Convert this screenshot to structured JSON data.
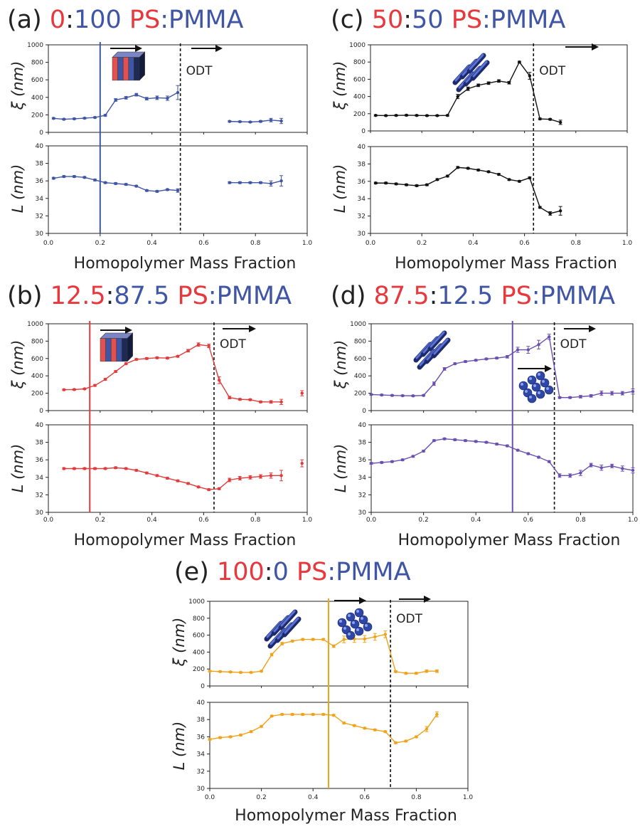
{
  "colors": {
    "ps": "#e8383d",
    "pmma": "#3f55a5",
    "label_black": "#222222",
    "series": {
      "a": "#3f55a5",
      "b": "#e23b3b",
      "c": "#111111",
      "d": "#6a4fb0",
      "e": "#f0a21a"
    }
  },
  "panels": [
    {
      "id": "a",
      "title": {
        "letter": "(a) ",
        "ps_amount": "0",
        "sep1": ":",
        "pmma_amount": "100",
        "ps_word": "PS",
        "sep2": ":",
        "pmma_word": "PMMA"
      }
    },
    {
      "id": "b",
      "title": {
        "letter": "(b) ",
        "ps_amount": "12.5",
        "sep1": ":",
        "pmma_amount": "87.5",
        "ps_word": "PS",
        "sep2": ":",
        "pmma_word": "PMMA"
      }
    },
    {
      "id": "c",
      "title": {
        "letter": "(c) ",
        "ps_amount": "50",
        "sep1": ":",
        "pmma_amount": "50",
        "ps_word": "PS",
        "sep2": ":",
        "pmma_word": "PMMA"
      }
    },
    {
      "id": "d",
      "title": {
        "letter": "(d) ",
        "ps_amount": "87.5",
        "sep1": ":",
        "pmma_amount": "12.5",
        "ps_word": "PS",
        "sep2": ":",
        "pmma_word": "PMMA"
      }
    },
    {
      "id": "e",
      "title": {
        "letter": "(e) ",
        "ps_amount": "100",
        "sep1": ":",
        "pmma_amount": "0",
        "ps_word": "PS",
        "sep2": ":",
        "pmma_word": "PMMA"
      }
    }
  ],
  "chart_data": [
    {
      "panel": "a",
      "type": "line",
      "xlabel": "Homopolymer Mass Fraction",
      "xlim": [
        0,
        1.0
      ],
      "x_ticks": [
        "0.0",
        "0.2",
        "0.4",
        "0.6",
        "0.8",
        "1.0"
      ],
      "xi_ylabel": "ξ (nm)",
      "xi_ylim": [
        0,
        1000
      ],
      "xi_ticks": [
        "0",
        "200",
        "400",
        "600",
        "800",
        "1000"
      ],
      "L_ylabel": "L (nm)",
      "L_ylim": [
        30,
        40
      ],
      "L_ticks": [
        "30",
        "32",
        "34",
        "36",
        "38",
        "40"
      ],
      "odt_label": "ODT",
      "odt_x": 0.51,
      "transition_x": 0.2,
      "xi_segments": [
        {
          "x": [
            0.02,
            0.06,
            0.1,
            0.14,
            0.18,
            0.22,
            0.26,
            0.3,
            0.34,
            0.38,
            0.42,
            0.46,
            0.5
          ],
          "y": [
            160,
            150,
            155,
            162,
            170,
            195,
            370,
            395,
            430,
            385,
            395,
            390,
            455
          ],
          "err": [
            8,
            8,
            8,
            8,
            8,
            10,
            15,
            15,
            15,
            15,
            20,
            25,
            80
          ]
        },
        {
          "x": [
            0.7,
            0.74,
            0.78,
            0.82,
            0.86,
            0.9
          ],
          "y": [
            125,
            122,
            118,
            125,
            140,
            130
          ],
          "err": [
            8,
            8,
            8,
            10,
            20,
            30
          ]
        }
      ],
      "L_segments": [
        {
          "x": [
            0.02,
            0.06,
            0.1,
            0.14,
            0.18,
            0.22,
            0.26,
            0.3,
            0.34,
            0.38,
            0.42,
            0.46,
            0.5
          ],
          "y": [
            36.3,
            36.5,
            36.5,
            36.4,
            36.1,
            35.8,
            35.7,
            35.6,
            35.4,
            34.9,
            34.8,
            35.0,
            34.9
          ],
          "err": [
            0.1,
            0.1,
            0.1,
            0.1,
            0.1,
            0.1,
            0.1,
            0.1,
            0.1,
            0.1,
            0.1,
            0.1,
            0.2
          ]
        },
        {
          "x": [
            0.7,
            0.74,
            0.78,
            0.82,
            0.86,
            0.9
          ],
          "y": [
            35.8,
            35.8,
            35.8,
            35.8,
            35.7,
            36.0
          ],
          "err": [
            0.1,
            0.1,
            0.1,
            0.1,
            0.3,
            0.6
          ]
        }
      ]
    },
    {
      "panel": "b",
      "type": "line",
      "xlabel": "Homopolymer Mass Fraction",
      "xlim": [
        0,
        1.0
      ],
      "x_ticks": [
        "0.0",
        "0.2",
        "0.4",
        "0.6",
        "0.8",
        "1.0"
      ],
      "xi_ylabel": "ξ (nm)",
      "xi_ylim": [
        0,
        1000
      ],
      "xi_ticks": [
        "0",
        "200",
        "400",
        "600",
        "800",
        "1000"
      ],
      "L_ylabel": "L (nm)",
      "L_ylim": [
        30,
        40
      ],
      "L_ticks": [
        "30",
        "32",
        "34",
        "36",
        "38",
        "40"
      ],
      "odt_label": "ODT",
      "odt_x": 0.64,
      "transition_x": 0.16,
      "xi_segments": [
        {
          "x": [
            0.06,
            0.1,
            0.14,
            0.18,
            0.22,
            0.26,
            0.3,
            0.34,
            0.38,
            0.42,
            0.46,
            0.5,
            0.54,
            0.58,
            0.62,
            0.66,
            0.7,
            0.74,
            0.78,
            0.82,
            0.86,
            0.9
          ],
          "y": [
            240,
            242,
            250,
            290,
            360,
            450,
            540,
            590,
            600,
            608,
            605,
            625,
            690,
            760,
            745,
            350,
            150,
            130,
            125,
            100,
            100,
            100
          ],
          "err": [
            8,
            8,
            8,
            10,
            10,
            10,
            10,
            10,
            10,
            10,
            10,
            10,
            15,
            20,
            20,
            40,
            15,
            10,
            10,
            10,
            15,
            30
          ]
        },
        {
          "x": [
            0.98
          ],
          "y": [
            200
          ],
          "err": [
            30
          ]
        }
      ],
      "L_segments": [
        {
          "x": [
            0.06,
            0.1,
            0.14,
            0.18,
            0.22,
            0.26,
            0.3,
            0.34,
            0.38,
            0.42,
            0.46,
            0.5,
            0.54,
            0.58,
            0.62,
            0.66,
            0.7,
            0.74,
            0.78,
            0.82,
            0.86,
            0.9
          ],
          "y": [
            35.0,
            35.0,
            35.0,
            35.0,
            35.0,
            35.1,
            35.0,
            34.8,
            34.5,
            34.2,
            33.9,
            33.6,
            33.3,
            32.9,
            32.6,
            32.7,
            33.7,
            33.9,
            34.0,
            34.1,
            34.2,
            34.2
          ],
          "err": [
            0.1,
            0.1,
            0.1,
            0.1,
            0.1,
            0.1,
            0.1,
            0.1,
            0.1,
            0.1,
            0.1,
            0.1,
            0.1,
            0.1,
            0.1,
            0.1,
            0.2,
            0.2,
            0.2,
            0.2,
            0.3,
            0.6
          ]
        },
        {
          "x": [
            0.98
          ],
          "y": [
            35.6
          ],
          "err": [
            0.4
          ]
        }
      ]
    },
    {
      "panel": "c",
      "type": "line",
      "xlabel": "Homopolymer Mass Fraction",
      "xlim": [
        0,
        1.0
      ],
      "x_ticks": [
        "0.0",
        "0.2",
        "0.4",
        "0.6",
        "0.8",
        "1.0"
      ],
      "xi_ylabel": "ξ (nm)",
      "xi_ylim": [
        0,
        1000
      ],
      "xi_ticks": [
        "0",
        "200",
        "400",
        "600",
        "800",
        "1000"
      ],
      "L_ylabel": "L (nm)",
      "L_ylim": [
        30,
        40
      ],
      "L_ticks": [
        "30",
        "32",
        "34",
        "36",
        "38",
        "40"
      ],
      "odt_label": "ODT",
      "odt_x": 0.635,
      "transition_x": null,
      "xi_segments": [
        {
          "x": [
            0.02,
            0.06,
            0.1,
            0.14,
            0.18,
            0.22,
            0.26,
            0.3,
            0.34,
            0.38,
            0.42,
            0.46,
            0.5,
            0.54,
            0.58,
            0.62,
            0.66,
            0.7,
            0.74
          ],
          "y": [
            180,
            178,
            180,
            182,
            180,
            178,
            178,
            180,
            400,
            490,
            530,
            555,
            580,
            560,
            800,
            640,
            140,
            135,
            100
          ],
          "err": [
            8,
            8,
            8,
            8,
            8,
            8,
            8,
            8,
            25,
            20,
            15,
            15,
            15,
            15,
            10,
            40,
            10,
            10,
            25
          ]
        }
      ],
      "L_segments": [
        {
          "x": [
            0.02,
            0.06,
            0.1,
            0.14,
            0.18,
            0.22,
            0.26,
            0.3,
            0.34,
            0.38,
            0.42,
            0.46,
            0.5,
            0.54,
            0.58,
            0.62,
            0.66,
            0.7,
            0.74
          ],
          "y": [
            35.8,
            35.8,
            35.7,
            35.6,
            35.5,
            35.6,
            36.2,
            36.6,
            37.6,
            37.5,
            37.3,
            37.1,
            36.8,
            36.2,
            36.0,
            36.4,
            33.0,
            32.3,
            32.6
          ],
          "err": [
            0.1,
            0.1,
            0.1,
            0.1,
            0.1,
            0.1,
            0.1,
            0.1,
            0.1,
            0.1,
            0.1,
            0.1,
            0.1,
            0.1,
            0.1,
            0.1,
            0.1,
            0.2,
            0.5
          ]
        }
      ]
    },
    {
      "panel": "d",
      "type": "line",
      "xlabel": "Homopolymer Mass Fraction",
      "xlim": [
        0,
        1.0
      ],
      "x_ticks": [
        "0.0",
        "0.2",
        "0.4",
        "0.6",
        "0.8",
        "1.0"
      ],
      "xi_ylabel": "ξ (nm)",
      "xi_ylim": [
        0,
        1000
      ],
      "xi_ticks": [
        "0",
        "200",
        "400",
        "600",
        "800",
        "1000"
      ],
      "L_ylabel": "L (nm)",
      "L_ylim": [
        30,
        40
      ],
      "L_ticks": [
        "30",
        "32",
        "34",
        "36",
        "38",
        "40"
      ],
      "odt_label": "ODT",
      "odt_x": 0.7,
      "transition_x": 0.54,
      "xi_segments": [
        {
          "x": [
            0.0,
            0.04,
            0.08,
            0.12,
            0.16,
            0.2,
            0.24,
            0.28,
            0.32,
            0.36,
            0.4,
            0.44,
            0.48,
            0.52,
            0.56,
            0.6,
            0.64,
            0.68,
            0.72,
            0.76,
            0.8,
            0.84,
            0.88,
            0.92,
            0.96,
            1.0
          ],
          "y": [
            185,
            180,
            175,
            172,
            170,
            175,
            310,
            480,
            540,
            565,
            580,
            595,
            605,
            620,
            700,
            700,
            760,
            850,
            150,
            150,
            160,
            170,
            200,
            200,
            200,
            220
          ],
          "err": [
            8,
            8,
            8,
            8,
            8,
            8,
            20,
            15,
            10,
            10,
            10,
            10,
            10,
            15,
            30,
            40,
            50,
            30,
            10,
            10,
            15,
            15,
            25,
            20,
            20,
            30
          ]
        }
      ],
      "L_segments": [
        {
          "x": [
            0.0,
            0.04,
            0.08,
            0.12,
            0.16,
            0.2,
            0.24,
            0.28,
            0.32,
            0.36,
            0.4,
            0.44,
            0.48,
            0.52,
            0.56,
            0.6,
            0.64,
            0.68,
            0.72,
            0.76,
            0.8,
            0.84,
            0.88,
            0.92,
            0.96,
            1.0
          ],
          "y": [
            35.6,
            35.7,
            35.8,
            36.0,
            36.4,
            37.0,
            38.2,
            38.4,
            38.3,
            38.2,
            38.1,
            38.0,
            37.8,
            37.6,
            37.1,
            36.7,
            36.3,
            35.8,
            34.2,
            34.2,
            34.5,
            35.4,
            35.1,
            35.3,
            35.0,
            34.8
          ],
          "err": [
            0.1,
            0.1,
            0.1,
            0.1,
            0.1,
            0.1,
            0.1,
            0.1,
            0.1,
            0.1,
            0.1,
            0.1,
            0.1,
            0.1,
            0.1,
            0.1,
            0.1,
            0.1,
            0.2,
            0.2,
            0.3,
            0.2,
            0.3,
            0.2,
            0.3,
            0.3
          ]
        }
      ]
    },
    {
      "panel": "e",
      "type": "line",
      "xlabel": "Homopolymer Mass Fraction",
      "xlim": [
        0,
        1.0
      ],
      "x_ticks": [
        "0.0",
        "0.2",
        "0.4",
        "0.6",
        "0.8",
        "1.0"
      ],
      "xi_ylabel": "ξ (nm)",
      "xi_ylim": [
        0,
        1000
      ],
      "xi_ticks": [
        "0",
        "200",
        "400",
        "600",
        "800",
        "1000"
      ],
      "L_ylabel": "L (nm)",
      "L_ylim": [
        30,
        40
      ],
      "L_ticks": [
        "30",
        "32",
        "34",
        "36",
        "38",
        "40"
      ],
      "odt_label": "ODT",
      "odt_x": 0.7,
      "transition_x": 0.46,
      "xi_segments": [
        {
          "x": [
            0.0,
            0.04,
            0.08,
            0.12,
            0.16,
            0.2,
            0.24,
            0.28,
            0.32,
            0.36,
            0.4,
            0.44,
            0.48,
            0.52,
            0.56,
            0.6,
            0.64,
            0.68,
            0.72,
            0.76,
            0.8,
            0.84,
            0.88
          ],
          "y": [
            175,
            170,
            165,
            160,
            160,
            175,
            370,
            500,
            530,
            550,
            550,
            550,
            470,
            550,
            555,
            555,
            580,
            610,
            170,
            150,
            150,
            175,
            175
          ],
          "err": [
            8,
            8,
            8,
            8,
            8,
            8,
            15,
            15,
            10,
            10,
            10,
            10,
            15,
            40,
            40,
            40,
            40,
            40,
            10,
            10,
            10,
            15,
            15
          ]
        }
      ],
      "L_segments": [
        {
          "x": [
            0.0,
            0.04,
            0.08,
            0.12,
            0.16,
            0.2,
            0.24,
            0.28,
            0.32,
            0.36,
            0.4,
            0.44,
            0.48,
            0.52,
            0.56,
            0.6,
            0.64,
            0.68,
            0.72,
            0.76,
            0.8,
            0.84,
            0.88
          ],
          "y": [
            35.7,
            35.9,
            36.0,
            36.2,
            36.6,
            37.2,
            38.4,
            38.6,
            38.6,
            38.6,
            38.6,
            38.6,
            38.5,
            37.6,
            37.3,
            37.0,
            36.8,
            36.6,
            35.3,
            35.5,
            36.0,
            36.9,
            38.6
          ],
          "err": [
            0.1,
            0.1,
            0.1,
            0.1,
            0.1,
            0.1,
            0.1,
            0.1,
            0.1,
            0.1,
            0.1,
            0.1,
            0.1,
            0.1,
            0.1,
            0.1,
            0.1,
            0.1,
            0.1,
            0.1,
            0.1,
            0.3,
            0.3
          ]
        }
      ]
    }
  ]
}
